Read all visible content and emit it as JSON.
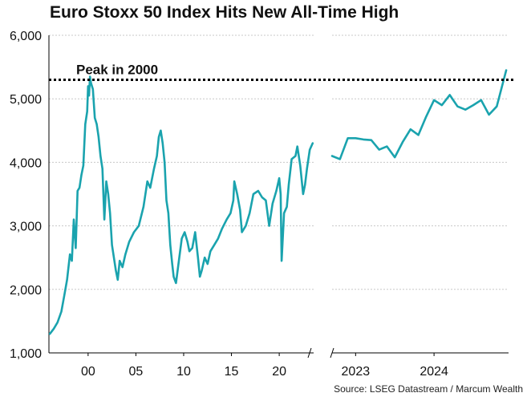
{
  "chart_data": {
    "type": "line",
    "title": "Euro Stoxx 50 Index Hits New All-Time High",
    "source": "Source: LSEG Datastream / Marcum Wealth",
    "ylim": [
      1000,
      6000
    ],
    "yticks": [
      1000,
      2000,
      3000,
      4000,
      5000,
      6000
    ],
    "ytick_labels": [
      "1,000",
      "2,000",
      "3,000",
      "4,000",
      "5,000",
      "6,000"
    ],
    "grid": true,
    "colors": {
      "line": "#1aa3ae",
      "grid": "#c8c8c8",
      "axis": "#000000",
      "peak": "#000000"
    },
    "peak_line": {
      "value": 5300,
      "label": "Peak in 2000"
    },
    "panels": [
      {
        "name": "history",
        "xlim": [
          1995.9,
          2023.6
        ],
        "xticks": [
          2000,
          2005,
          2010,
          2015,
          2020
        ],
        "xtick_labels": [
          "00",
          "05",
          "10",
          "15",
          "20"
        ],
        "series": {
          "name": "Euro Stoxx 50",
          "x": [
            1996.0,
            1996.4,
            1996.8,
            1997.2,
            1997.5,
            1997.8,
            1998.1,
            1998.3,
            1998.5,
            1998.7,
            1998.9,
            1999.1,
            1999.3,
            1999.5,
            1999.7,
            1999.9,
            2000.0,
            2000.1,
            2000.2,
            2000.3,
            2000.5,
            2000.7,
            2000.9,
            2001.1,
            2001.3,
            2001.5,
            2001.7,
            2001.9,
            2002.1,
            2002.3,
            2002.5,
            2002.7,
            2002.9,
            2003.1,
            2003.3,
            2003.6,
            2003.9,
            2004.3,
            2004.8,
            2005.3,
            2005.8,
            2006.2,
            2006.5,
            2006.9,
            2007.2,
            2007.4,
            2007.6,
            2007.8,
            2008.0,
            2008.2,
            2008.4,
            2008.6,
            2008.8,
            2008.95,
            2009.2,
            2009.5,
            2009.8,
            2010.1,
            2010.4,
            2010.6,
            2010.9,
            2011.2,
            2011.5,
            2011.7,
            2011.9,
            2012.2,
            2012.5,
            2012.8,
            2013.2,
            2013.6,
            2014.0,
            2014.5,
            2014.9,
            2015.2,
            2015.3,
            2015.6,
            2015.9,
            2016.1,
            2016.5,
            2016.9,
            2017.3,
            2017.8,
            2018.2,
            2018.6,
            2018.95,
            2019.3,
            2019.7,
            2020.0,
            2020.15,
            2020.25,
            2020.5,
            2020.8,
            2021.0,
            2021.3,
            2021.7,
            2021.9,
            2022.2,
            2022.5,
            2022.7,
            2022.9,
            2023.2,
            2023.5
          ],
          "y": [
            1300,
            1380,
            1480,
            1650,
            1900,
            2150,
            2550,
            2450,
            3100,
            2650,
            3550,
            3600,
            3800,
            3950,
            4600,
            4800,
            5200,
            5050,
            5350,
            5250,
            5150,
            4700,
            4600,
            4400,
            4100,
            3900,
            3100,
            3700,
            3500,
            3200,
            2700,
            2500,
            2300,
            2150,
            2450,
            2350,
            2550,
            2750,
            2900,
            3000,
            3300,
            3700,
            3600,
            3900,
            4100,
            4400,
            4500,
            4300,
            4000,
            3400,
            3200,
            2700,
            2400,
            2200,
            2100,
            2450,
            2800,
            2900,
            2750,
            2600,
            2650,
            2900,
            2500,
            2200,
            2300,
            2500,
            2400,
            2600,
            2700,
            2800,
            2950,
            3100,
            3200,
            3400,
            3700,
            3500,
            3250,
            2900,
            3000,
            3200,
            3500,
            3550,
            3450,
            3400,
            3000,
            3350,
            3550,
            3750,
            3500,
            2450,
            3200,
            3300,
            3650,
            4050,
            4100,
            4250,
            3950,
            3500,
            3650,
            3900,
            4200,
            4300
          ]
        }
      },
      {
        "name": "recent",
        "xlim": [
          2022.7,
          2024.95
        ],
        "xticks": [
          2023,
          2024
        ],
        "xtick_labels": [
          "2023",
          "2024"
        ],
        "series": {
          "name": "Euro Stoxx 50",
          "x": [
            2022.7,
            2022.8,
            2022.9,
            2023.0,
            2023.1,
            2023.2,
            2023.3,
            2023.4,
            2023.5,
            2023.6,
            2023.7,
            2023.8,
            2023.9,
            2024.0,
            2024.1,
            2024.2,
            2024.3,
            2024.4,
            2024.5,
            2024.6,
            2024.7,
            2024.8,
            2024.92
          ],
          "y": [
            4100,
            4050,
            4380,
            4380,
            4360,
            4350,
            4200,
            4250,
            4080,
            4320,
            4520,
            4430,
            4720,
            4980,
            4900,
            5060,
            4880,
            4830,
            4900,
            4980,
            4750,
            4880,
            5450
          ]
        }
      }
    ]
  }
}
